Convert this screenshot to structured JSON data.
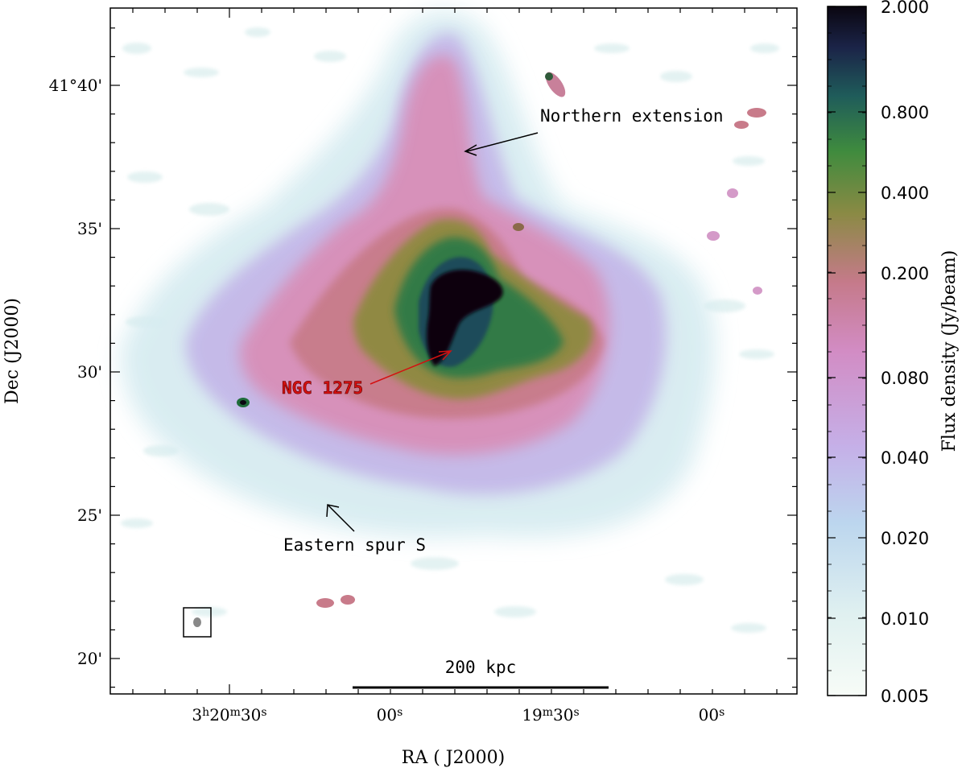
{
  "image": {
    "x_axis_label": "RA ( J2000)",
    "y_axis_label": "Dec (J2000)",
    "x_ticks": [
      {
        "main": "3",
        "sup1": "h",
        "mid": "20",
        "sup2": "m",
        "end": "30",
        "sup3": "s"
      },
      {
        "main": "00",
        "sup1": "s",
        "mid": "",
        "sup2": "",
        "end": "",
        "sup3": ""
      },
      {
        "main": "19",
        "sup1": "m",
        "mid": "30",
        "sup2": "s",
        "end": "",
        "sup3": ""
      },
      {
        "main": "00",
        "sup1": "s",
        "mid": "",
        "sup2": "",
        "end": "",
        "sup3": ""
      }
    ],
    "y_ticks": [
      "41°40'",
      "35'",
      "30'",
      "25'",
      "20'"
    ],
    "annotations": {
      "northern": "Northern extension",
      "ngc": "NGC 1275",
      "eastern": "Eastern spur S"
    },
    "scale_bar_label": "200 kpc",
    "colorbar": {
      "label": "Flux density (Jy/beam)",
      "ticks": [
        "2.000",
        "0.800",
        "0.400",
        "0.200",
        "0.080",
        "0.040",
        "0.020",
        "0.010",
        "0.005"
      ]
    },
    "colors": {
      "background": "#ffffff",
      "low": "#dff0f0",
      "mid_low": "#c9b4e6",
      "mid": "#d78cb6",
      "mid_high": "#7a8a30",
      "high": "#2f7a46",
      "peak": "#0a0610",
      "ngc_label": "#d41010"
    }
  }
}
